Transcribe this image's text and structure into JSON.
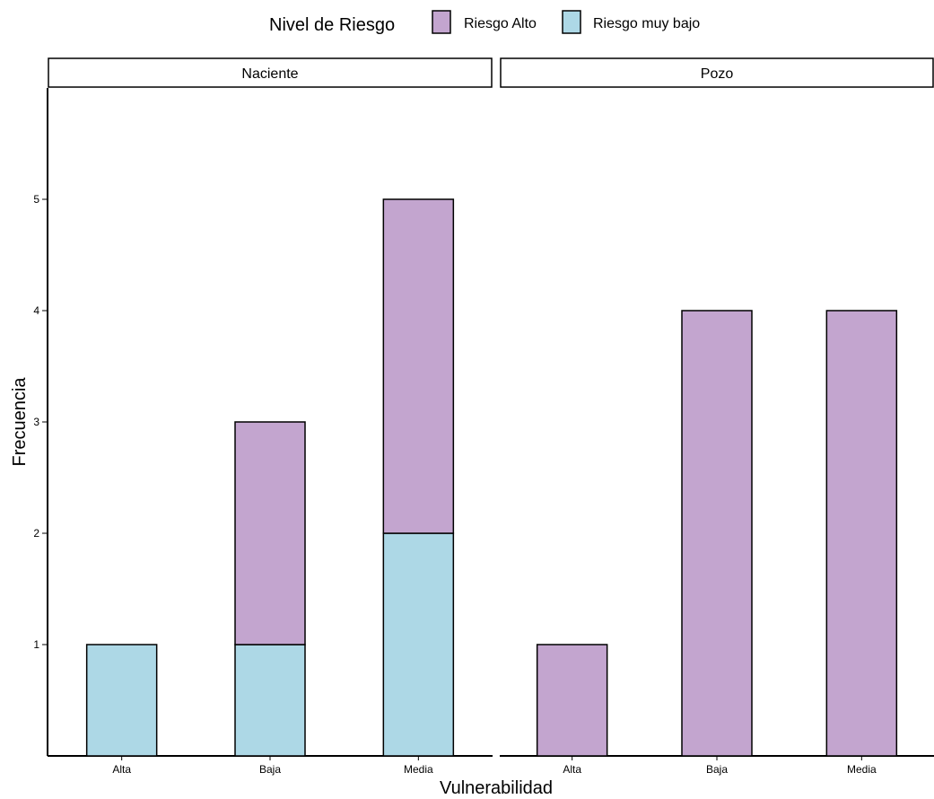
{
  "chart_data": {
    "type": "bar",
    "stacked": true,
    "legend": {
      "title": "Nivel de Riesgo",
      "position": "top",
      "entries": [
        {
          "label": "Riesgo Alto",
          "color": "#c3a5cf"
        },
        {
          "label": "Riesgo muy bajo",
          "color": "#add8e6"
        }
      ]
    },
    "xlabel": "Vulnerabilidad",
    "ylabel": "Frecuencia",
    "ylim": [
      0,
      6
    ],
    "yticks": [
      1,
      2,
      3,
      4,
      5
    ],
    "categories": [
      "Alta",
      "Baja",
      "Media"
    ],
    "grid": false,
    "facets": [
      {
        "name": "Naciente",
        "series": [
          {
            "name": "Riesgo muy bajo",
            "values": [
              1,
              1,
              2
            ]
          },
          {
            "name": "Riesgo Alto",
            "values": [
              0,
              2,
              3
            ]
          }
        ]
      },
      {
        "name": "Pozo",
        "series": [
          {
            "name": "Riesgo muy bajo",
            "values": [
              0,
              0,
              0
            ]
          },
          {
            "name": "Riesgo Alto",
            "values": [
              1,
              4,
              4
            ]
          }
        ]
      }
    ]
  }
}
